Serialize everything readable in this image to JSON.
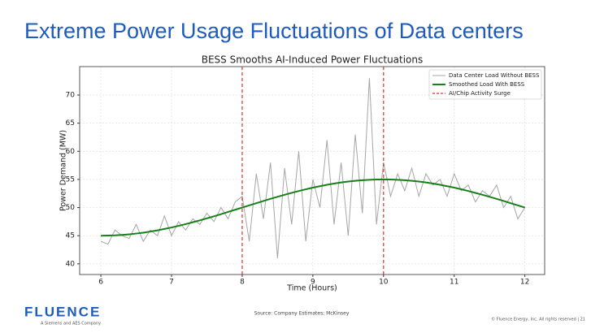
{
  "slide_title": "Extreme Power Usage Fluctuations of Data centers",
  "footer": {
    "logo": "FLUENCE",
    "tagline": "A Siemens and AES Company",
    "source": "Source: Company Estimates; McKinsey",
    "copyright": "© Fluence Energy, Inc. All rights reserved  |  21"
  },
  "chart_data": {
    "type": "line",
    "title": "BESS Smooths AI-Induced Power Fluctuations",
    "x_label": "Time (Hours)",
    "y_label": "Power Demand (MW)",
    "x": [
      6,
      6.1,
      6.2,
      6.3,
      6.4,
      6.5,
      6.6,
      6.7,
      6.8,
      6.9,
      7,
      7.1,
      7.2,
      7.3,
      7.4,
      7.5,
      7.6,
      7.7,
      7.8,
      7.9,
      8,
      8.1,
      8.2,
      8.3,
      8.4,
      8.5,
      8.6,
      8.7,
      8.8,
      8.9,
      9,
      9.1,
      9.2,
      9.3,
      9.4,
      9.5,
      9.6,
      9.7,
      9.8,
      9.9,
      10,
      10.1,
      10.2,
      10.3,
      10.4,
      10.5,
      10.6,
      10.7,
      10.8,
      10.9,
      11,
      11.1,
      11.2,
      11.3,
      11.4,
      11.5,
      11.6,
      11.7,
      11.8,
      11.9,
      12
    ],
    "series": [
      {
        "name": "Data Center Load Without BESS",
        "color": "#a6a6a6",
        "width": 1,
        "values": [
          44,
          43.5,
          46,
          45,
          44.5,
          47,
          44,
          46,
          45,
          48.5,
          45,
          47.5,
          46,
          48,
          47,
          49,
          47.5,
          50,
          48,
          51,
          52,
          44,
          56,
          48,
          58,
          41,
          57,
          47,
          60,
          44,
          55,
          50,
          62,
          47,
          58,
          45,
          63,
          49,
          73,
          47,
          58,
          52,
          56,
          53,
          57,
          52,
          56,
          54,
          55,
          52,
          56,
          53,
          54,
          51,
          53,
          52,
          54,
          50,
          52,
          48,
          50
        ]
      },
      {
        "name": "Smoothed Load With BESS",
        "color": "#188018",
        "width": 2,
        "values": [
          45.0,
          45.02,
          45.06,
          45.14,
          45.24,
          45.38,
          45.54,
          45.74,
          45.95,
          46.2,
          46.46,
          46.75,
          47.06,
          47.39,
          47.73,
          48.09,
          48.45,
          48.83,
          49.22,
          49.61,
          50.0,
          50.39,
          50.78,
          51.17,
          51.55,
          51.91,
          52.27,
          52.61,
          52.94,
          53.25,
          53.54,
          53.8,
          54.05,
          54.26,
          54.46,
          54.62,
          54.76,
          54.86,
          54.94,
          54.98,
          55.0,
          54.98,
          54.94,
          54.86,
          54.76,
          54.62,
          54.46,
          54.26,
          54.05,
          53.8,
          53.54,
          53.25,
          52.94,
          52.61,
          52.27,
          51.91,
          51.55,
          51.17,
          50.78,
          50.39,
          50.0
        ]
      }
    ],
    "vlines": {
      "name": "AI/Chip Activity Surge",
      "color": "#e03030",
      "x": [
        8,
        10
      ]
    },
    "xlim": [
      5.7,
      12.28
    ],
    "ylim": [
      38.1,
      75.05
    ],
    "xticks": [
      6,
      7,
      8,
      9,
      10,
      11,
      12
    ],
    "yticks": [
      40,
      45,
      50,
      55,
      60,
      65,
      70
    ],
    "grid": true,
    "legend": "upper right"
  }
}
